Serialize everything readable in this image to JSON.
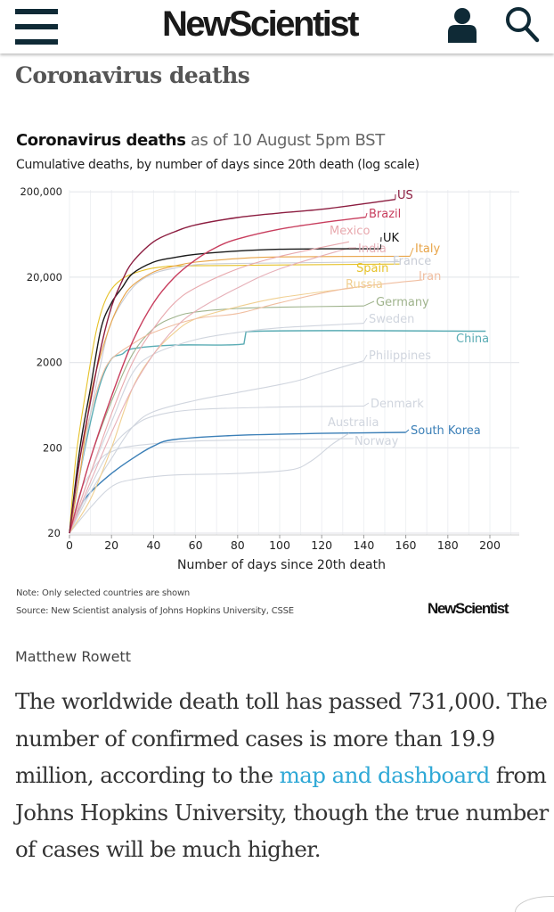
{
  "header": {
    "logo": "NewScientist",
    "menu_icon": "hamburger-menu-icon",
    "account_icon": "user-icon",
    "search_icon": "search-icon"
  },
  "page_title": "Coronavirus deaths",
  "chart_data": {
    "type": "line",
    "title": "Coronavirus deaths",
    "title_suffix": "as of 10 August 5pm BST",
    "subtitle": "Cumulative deaths, by number of days since 20th death (log scale)",
    "xlabel": "Number of days since 20th death",
    "ylabel": "",
    "xlim": [
      0,
      210
    ],
    "ylim": [
      20,
      200000
    ],
    "yscale": "log",
    "grid": true,
    "legend": "direct-labels",
    "x_ticks": [
      "0",
      "20",
      "40",
      "60",
      "80",
      "100",
      "120",
      "140",
      "160",
      "180",
      "200"
    ],
    "y_ticks": [
      "20",
      "200",
      "2000",
      "20,000",
      "200,000"
    ],
    "y_tick_values": [
      20,
      200,
      2000,
      20000,
      200000
    ],
    "series": [
      {
        "name": "US",
        "color": "#8c1d40",
        "points": [
          [
            0,
            20
          ],
          [
            5,
            150
          ],
          [
            10,
            700
          ],
          [
            15,
            3000
          ],
          [
            20,
            9000
          ],
          [
            25,
            18000
          ],
          [
            30,
            30000
          ],
          [
            40,
            52000
          ],
          [
            50,
            68000
          ],
          [
            60,
            82000
          ],
          [
            80,
            100000
          ],
          [
            100,
            113000
          ],
          [
            120,
            125000
          ],
          [
            140,
            145000
          ],
          [
            155,
            163000
          ]
        ]
      },
      {
        "name": "Brazil",
        "color": "#c83e5e",
        "points": [
          [
            0,
            20
          ],
          [
            10,
            150
          ],
          [
            20,
            800
          ],
          [
            30,
            3500
          ],
          [
            40,
            10000
          ],
          [
            50,
            20000
          ],
          [
            60,
            32000
          ],
          [
            70,
            45000
          ],
          [
            80,
            56000
          ],
          [
            100,
            73000
          ],
          [
            120,
            87000
          ],
          [
            141,
            101000
          ]
        ]
      },
      {
        "name": "Mexico",
        "color": "#e8a9ae",
        "points": [
          [
            0,
            20
          ],
          [
            10,
            100
          ],
          [
            20,
            500
          ],
          [
            30,
            2000
          ],
          [
            40,
            5000
          ],
          [
            50,
            10000
          ],
          [
            60,
            15000
          ],
          [
            80,
            25000
          ],
          [
            100,
            35000
          ],
          [
            133,
            52000
          ]
        ]
      },
      {
        "name": "UK",
        "color": "#1a1a1a",
        "points": [
          [
            0,
            20
          ],
          [
            5,
            200
          ],
          [
            10,
            1000
          ],
          [
            15,
            5000
          ],
          [
            20,
            10000
          ],
          [
            25,
            15000
          ],
          [
            30,
            22000
          ],
          [
            40,
            30000
          ],
          [
            50,
            34000
          ],
          [
            60,
            37000
          ],
          [
            80,
            40500
          ],
          [
            100,
            42500
          ],
          [
            120,
            43000
          ],
          [
            148,
            43000
          ]
        ]
      },
      {
        "name": "India",
        "color": "#e6b0b8",
        "points": [
          [
            0,
            20
          ],
          [
            10,
            80
          ],
          [
            20,
            300
          ],
          [
            30,
            1000
          ],
          [
            40,
            2500
          ],
          [
            50,
            5000
          ],
          [
            60,
            8000
          ],
          [
            80,
            15000
          ],
          [
            100,
            25000
          ],
          [
            133,
            44000
          ]
        ]
      },
      {
        "name": "Italy",
        "color": "#e8a448",
        "points": [
          [
            0,
            20
          ],
          [
            5,
            100
          ],
          [
            10,
            800
          ],
          [
            15,
            2500
          ],
          [
            20,
            6000
          ],
          [
            25,
            11000
          ],
          [
            30,
            16000
          ],
          [
            40,
            23000
          ],
          [
            50,
            27000
          ],
          [
            60,
            30000
          ],
          [
            80,
            33000
          ],
          [
            100,
            34500
          ],
          [
            162,
            35200
          ]
        ]
      },
      {
        "name": "France",
        "color": "#c9cdd6",
        "points": [
          [
            0,
            20
          ],
          [
            5,
            100
          ],
          [
            10,
            500
          ],
          [
            15,
            2000
          ],
          [
            20,
            6000
          ],
          [
            30,
            15000
          ],
          [
            40,
            22000
          ],
          [
            50,
            25500
          ],
          [
            60,
            28000
          ],
          [
            80,
            29000
          ],
          [
            157,
            30300
          ]
        ]
      },
      {
        "name": "Spain",
        "color": "#e6c229",
        "points": [
          [
            0,
            20
          ],
          [
            3,
            150
          ],
          [
            8,
            1000
          ],
          [
            13,
            5000
          ],
          [
            18,
            12000
          ],
          [
            25,
            19000
          ],
          [
            35,
            24000
          ],
          [
            45,
            26500
          ],
          [
            60,
            27200
          ],
          [
            157,
            28500
          ]
        ]
      },
      {
        "name": "Iran",
        "color": "#f0bea0",
        "points": [
          [
            0,
            20
          ],
          [
            5,
            150
          ],
          [
            10,
            500
          ],
          [
            15,
            1300
          ],
          [
            20,
            2200
          ],
          [
            30,
            3300
          ],
          [
            40,
            4500
          ],
          [
            60,
            6500
          ],
          [
            80,
            7500
          ],
          [
            100,
            10000
          ],
          [
            130,
            14500
          ],
          [
            168,
            18600
          ]
        ]
      },
      {
        "name": "Russia",
        "color": "#f0cf90",
        "points": [
          [
            0,
            20
          ],
          [
            10,
            50
          ],
          [
            20,
            200
          ],
          [
            30,
            1000
          ],
          [
            40,
            2500
          ],
          [
            50,
            4500
          ],
          [
            60,
            6500
          ],
          [
            80,
            9000
          ],
          [
            100,
            11500
          ],
          [
            135,
            15000
          ]
        ]
      },
      {
        "name": "Germany",
        "color": "#9fb38c",
        "points": [
          [
            0,
            20
          ],
          [
            10,
            150
          ],
          [
            20,
            700
          ],
          [
            30,
            2500
          ],
          [
            40,
            5000
          ],
          [
            50,
            6800
          ],
          [
            60,
            7800
          ],
          [
            80,
            8600
          ],
          [
            100,
            8900
          ],
          [
            140,
            9200
          ]
        ]
      },
      {
        "name": "Sweden",
        "color": "#d0d5de",
        "points": [
          [
            0,
            20
          ],
          [
            10,
            100
          ],
          [
            20,
            400
          ],
          [
            30,
            1500
          ],
          [
            40,
            2500
          ],
          [
            60,
            3700
          ],
          [
            80,
            4500
          ],
          [
            100,
            5100
          ],
          [
            140,
            5760
          ]
        ]
      },
      {
        "name": "China",
        "color": "#5aacb4",
        "points": [
          [
            0,
            20
          ],
          [
            5,
            100
          ],
          [
            10,
            400
          ],
          [
            15,
            1200
          ],
          [
            20,
            2200
          ],
          [
            25,
            2500
          ],
          [
            30,
            2900
          ],
          [
            50,
            3200
          ],
          [
            83,
            3300
          ],
          [
            84,
            4600
          ],
          [
            198,
            4650
          ]
        ]
      },
      {
        "name": "Philippines",
        "color": "#d0d5de",
        "points": [
          [
            0,
            20
          ],
          [
            10,
            60
          ],
          [
            20,
            150
          ],
          [
            30,
            350
          ],
          [
            40,
            530
          ],
          [
            60,
            720
          ],
          [
            80,
            890
          ],
          [
            100,
            1100
          ],
          [
            110,
            1250
          ],
          [
            120,
            1500
          ],
          [
            140,
            2100
          ]
        ]
      },
      {
        "name": "Denmark",
        "color": "#d0d5de",
        "points": [
          [
            0,
            20
          ],
          [
            10,
            70
          ],
          [
            20,
            200
          ],
          [
            30,
            350
          ],
          [
            40,
            470
          ],
          [
            60,
            560
          ],
          [
            100,
            600
          ],
          [
            140,
            616
          ]
        ]
      },
      {
        "name": "Australia",
        "color": "#d0d5de",
        "points": [
          [
            0,
            20
          ],
          [
            10,
            40
          ],
          [
            20,
            70
          ],
          [
            30,
            85
          ],
          [
            50,
            96
          ],
          [
            80,
            100
          ],
          [
            105,
            110
          ],
          [
            115,
            140
          ],
          [
            125,
            220
          ],
          [
            133,
            295
          ]
        ]
      },
      {
        "name": "South Korea",
        "color": "#3b7fb7",
        "points": [
          [
            0,
            20
          ],
          [
            5,
            40
          ],
          [
            10,
            60
          ],
          [
            20,
            100
          ],
          [
            30,
            150
          ],
          [
            40,
            210
          ],
          [
            50,
            250
          ],
          [
            80,
            280
          ],
          [
            120,
            295
          ],
          [
            160,
            303
          ]
        ]
      },
      {
        "name": "Norway",
        "color": "#d0d5de",
        "points": [
          [
            0,
            20
          ],
          [
            5,
            60
          ],
          [
            10,
            100
          ],
          [
            15,
            150
          ],
          [
            20,
            180
          ],
          [
            30,
            210
          ],
          [
            60,
            240
          ],
          [
            100,
            250
          ],
          [
            135,
            256
          ]
        ]
      }
    ],
    "note": "Note: Only selected countries are shown",
    "source": "Source: New Scientist analysis of Johns Hopkins University, CSSE",
    "credit_logo": "NewScientist"
  },
  "article": {
    "author": "Matthew Rowett",
    "p1_before": "The worldwide death toll has passed 731,000. The number of confirmed cases is more than 19.9 million, according to the ",
    "link_text": "map and dashboard",
    "p1_after": " from Johns Hopkins University, though the true number of cases will be much higher.",
    "link_color": "#2ea8d6"
  }
}
